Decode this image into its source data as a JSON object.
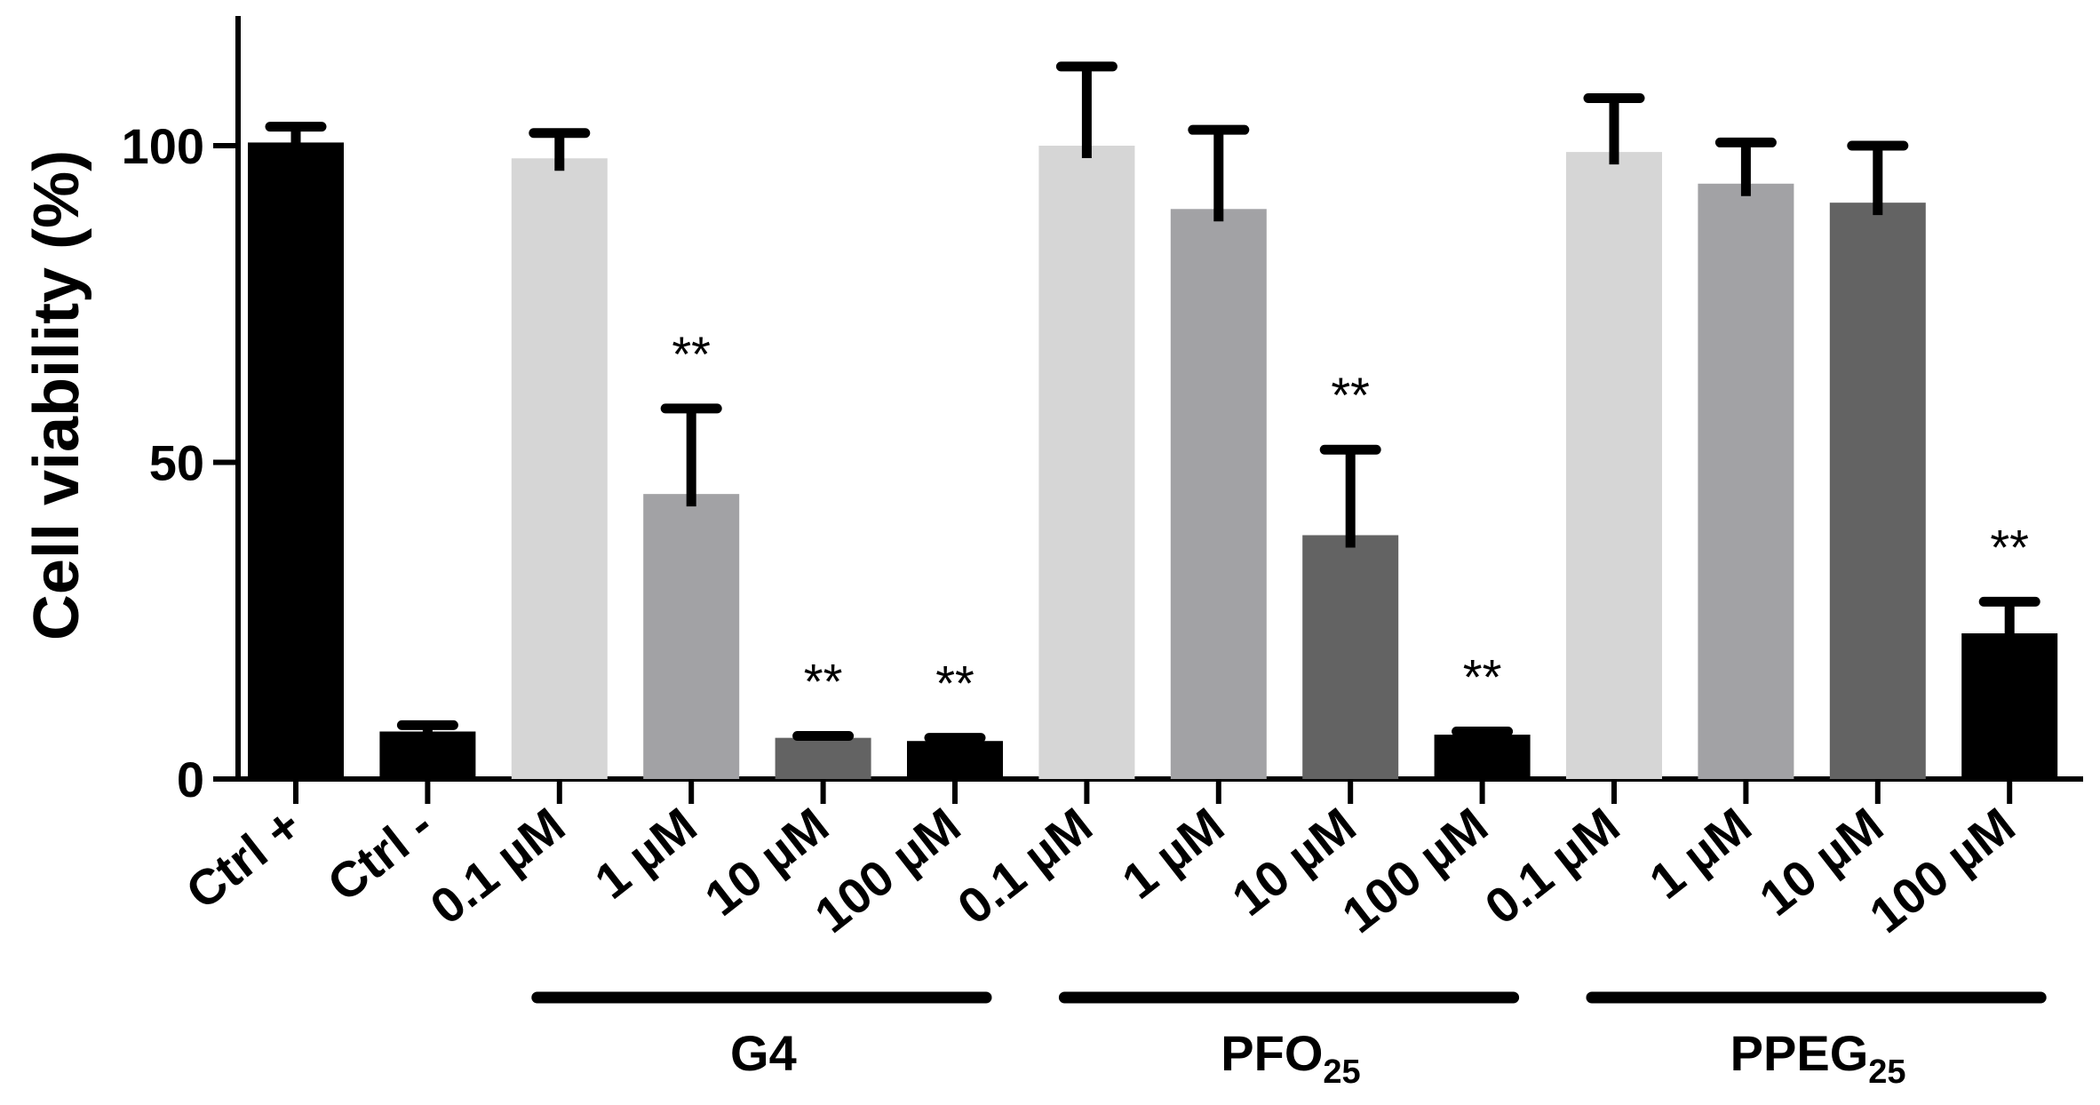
{
  "chart_data": {
    "type": "bar",
    "title": "",
    "xlabel": "",
    "ylabel": "Cell viability (%)",
    "ylim": [
      0,
      120
    ],
    "yticks": [
      0,
      50,
      100
    ],
    "grid": false,
    "categories": [
      "Ctrl +",
      "Ctrl -",
      "0.1 µM",
      "1 µM",
      "10 µM",
      "100 µM",
      "0.1 µM",
      "1 µM",
      "10 µM",
      "100 µM",
      "0.1 µM",
      "1 µM",
      "10 µM",
      "100 µM"
    ],
    "values": [
      100.5,
      7.5,
      98,
      45,
      6.5,
      6,
      100,
      90,
      38.5,
      7,
      99,
      94,
      91,
      23
    ],
    "errors": [
      2.5,
      1.0,
      4.0,
      13.5,
      0.3,
      0.5,
      12.5,
      12.5,
      13.5,
      0.5,
      8.5,
      6.5,
      9.0,
      5.0
    ],
    "colors": [
      "#000000",
      "#000000",
      "#d6d6d6",
      "#a2a2a5",
      "#636363",
      "#000000",
      "#d6d6d6",
      "#a2a2a5",
      "#636363",
      "#000000",
      "#d6d6d6",
      "#a2a2a5",
      "#636363",
      "#000000"
    ],
    "annotations": [
      "",
      "",
      "",
      "**",
      "**",
      "**",
      "",
      "",
      "**",
      "**",
      "",
      "",
      "",
      "**"
    ],
    "groups": [
      {
        "label": "G4",
        "subscript": "",
        "start": 2,
        "end": 5
      },
      {
        "label": "PFO",
        "subscript": "25",
        "start": 6,
        "end": 9
      },
      {
        "label": "PPEG",
        "subscript": "25",
        "start": 10,
        "end": 13
      }
    ]
  }
}
